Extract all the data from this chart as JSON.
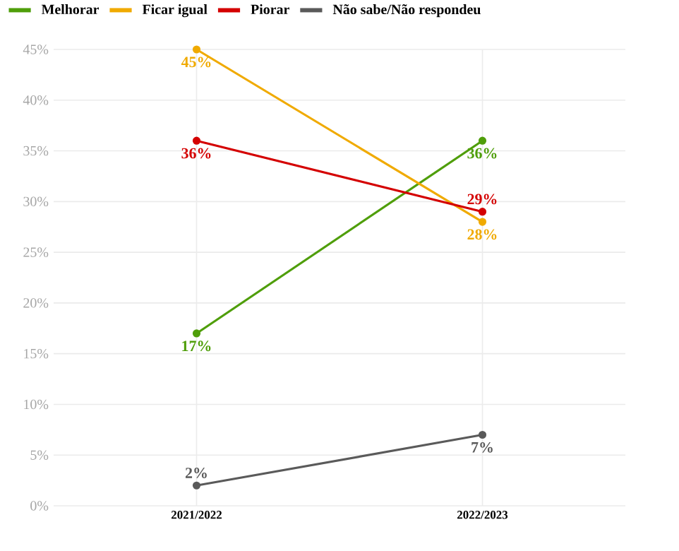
{
  "chart_data": {
    "type": "line",
    "categories": [
      "2021/2022",
      "2022/2023"
    ],
    "series": [
      {
        "name": "Melhorar",
        "color": "#4f9e0a",
        "values": [
          17,
          36
        ],
        "value_labels": [
          "17%",
          "36%"
        ]
      },
      {
        "name": "Ficar igual",
        "color": "#f0aa00",
        "values": [
          45,
          28
        ],
        "value_labels": [
          "45%",
          "28%"
        ]
      },
      {
        "name": "Piorar",
        "color": "#d40000",
        "values": [
          36,
          29
        ],
        "value_labels": [
          "36%",
          "29%"
        ]
      },
      {
        "name": "Não sabe/Não respondeu",
        "color": "#5a5a5a",
        "values": [
          2,
          7
        ],
        "value_labels": [
          "2%",
          "7%"
        ]
      }
    ],
    "ylim": [
      0,
      45
    ],
    "yticks": [
      {
        "value": 0,
        "label": "0%"
      },
      {
        "value": 5,
        "label": "5%"
      },
      {
        "value": 10,
        "label": "10%"
      },
      {
        "value": 15,
        "label": "15%"
      },
      {
        "value": 20,
        "label": "20%"
      },
      {
        "value": 25,
        "label": "25%"
      },
      {
        "value": 30,
        "label": "30%"
      },
      {
        "value": 35,
        "label": "35%"
      },
      {
        "value": 40,
        "label": "40%"
      },
      {
        "value": 45,
        "label": "45%"
      }
    ],
    "grid": true,
    "legend": "top left",
    "marker": "circle",
    "line_style": "solid"
  }
}
